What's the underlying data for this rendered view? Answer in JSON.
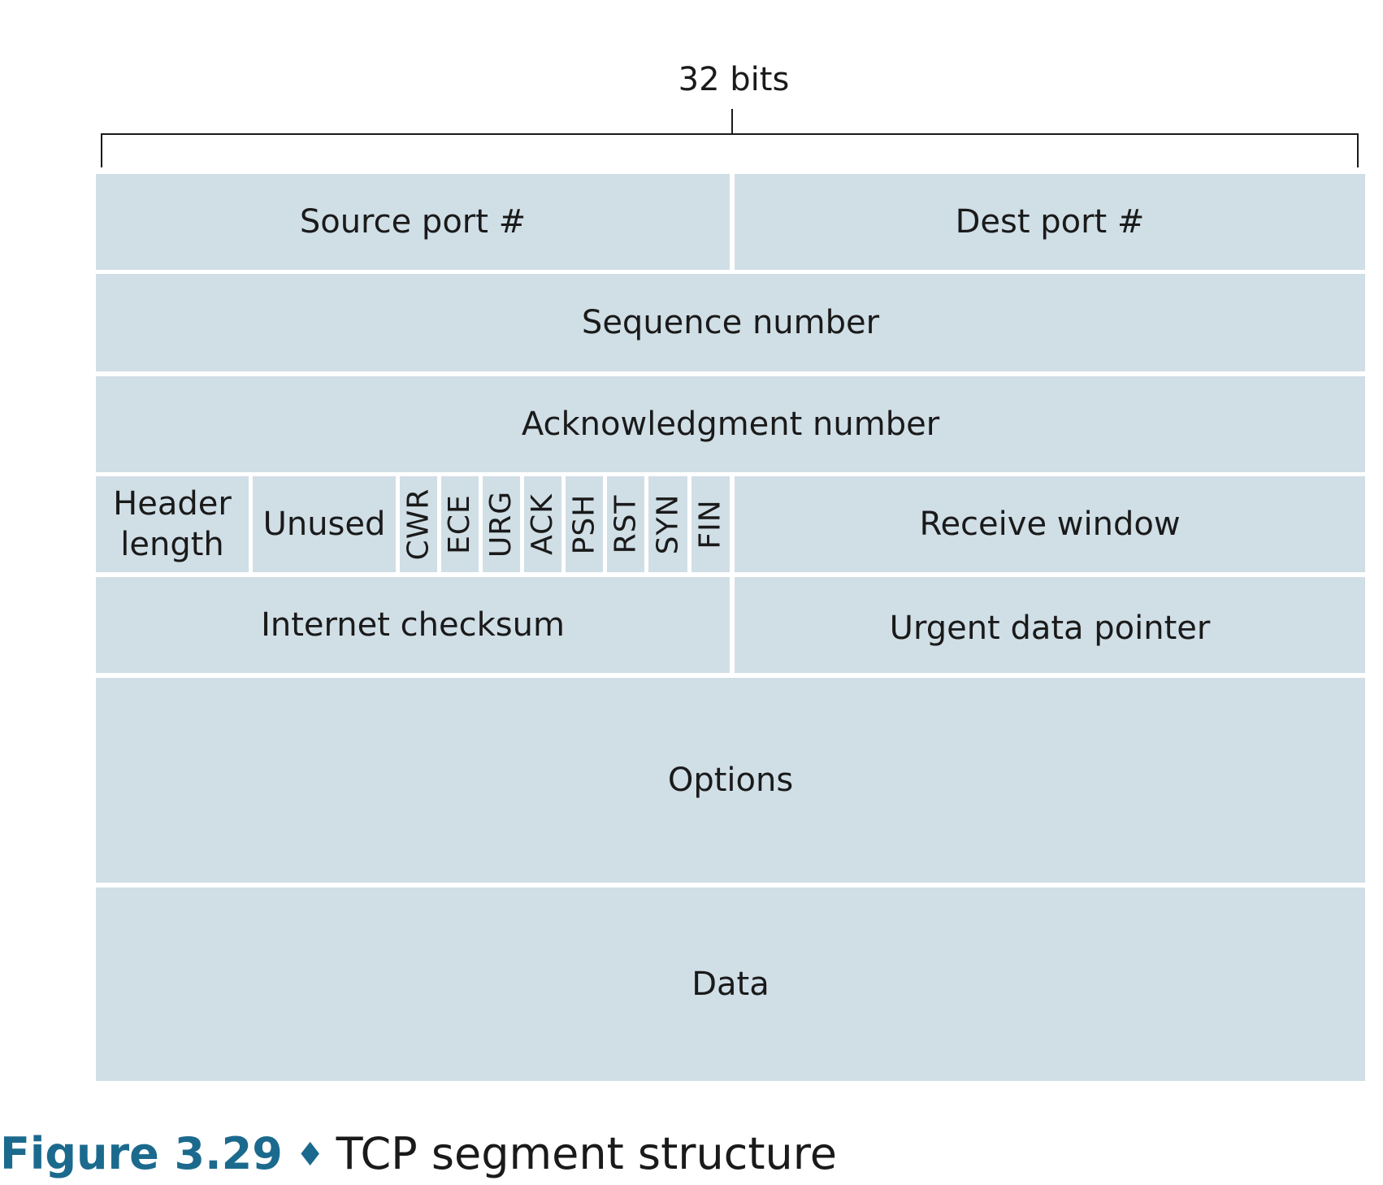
{
  "bits_label": "32 bits",
  "rows": {
    "source_port": "Source port #",
    "dest_port": "Dest port #",
    "sequence_number": "Sequence number",
    "acknowledgment_number": "Acknowledgment number",
    "header_length": "Header length",
    "unused": "Unused",
    "flags": [
      "CWR",
      "ECE",
      "URG",
      "ACK",
      "PSH",
      "RST",
      "SYN",
      "FIN"
    ],
    "receive_window": "Receive window",
    "internet_checksum": "Internet checksum",
    "urgent_data_pointer": "Urgent data pointer",
    "options": "Options",
    "data": "Data"
  },
  "caption": {
    "number": "Figure 3.29",
    "separator": "♦",
    "title": "TCP segment structure"
  },
  "colors": {
    "field_fill": "#d0dee6",
    "caption_accent": "#1b6a8e"
  }
}
